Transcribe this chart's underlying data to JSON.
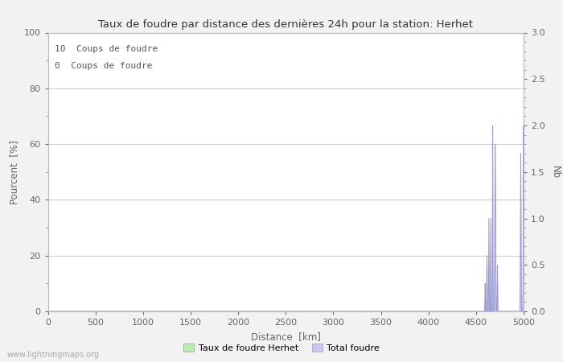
{
  "title": "Taux de foudre par distance des dernières 24h pour la station: Herhet",
  "xlabel": "Distance  [km]",
  "ylabel_left": "Pourcent  [%]",
  "ylabel_right": "Nb",
  "annotation_line1": "10  Coups de foudre",
  "annotation_line2": "0  Coups de foudre",
  "xlim": [
    0,
    5000
  ],
  "ylim_left": [
    0,
    100
  ],
  "ylim_right": [
    0,
    3.0
  ],
  "yticks_left": [
    0,
    20,
    40,
    60,
    80,
    100
  ],
  "yticks_right": [
    0.0,
    0.5,
    1.0,
    1.5,
    2.0,
    2.5,
    3.0
  ],
  "xticks": [
    0,
    500,
    1000,
    1500,
    2000,
    2500,
    3000,
    3500,
    4000,
    4500,
    5000
  ],
  "bg_color": "#f2f2f2",
  "plot_bg_color": "#ffffff",
  "grid_color": "#cccccc",
  "bar_color_green": "#bbeeaa",
  "bar_color_blue": "#c8c8f0",
  "line_color_blue": "#9999cc",
  "watermark": "www.lightningmaps.org",
  "legend_label1": "Taux de foudre Herhet",
  "legend_label2": "Total foudre",
  "spike_data": [
    [
      4590,
      0.0
    ],
    [
      4591,
      0.05
    ],
    [
      4592,
      0.1
    ],
    [
      4593,
      0.15
    ],
    [
      4594,
      0.2
    ],
    [
      4595,
      0.25
    ],
    [
      4596,
      0.3
    ],
    [
      4597,
      0.25
    ],
    [
      4598,
      0.2
    ],
    [
      4599,
      0.1
    ],
    [
      4600,
      0.05
    ],
    [
      4601,
      0.0
    ],
    [
      4609,
      0.0
    ],
    [
      4610,
      0.1
    ],
    [
      4611,
      0.2
    ],
    [
      4612,
      0.3
    ],
    [
      4613,
      0.4
    ],
    [
      4614,
      0.5
    ],
    [
      4615,
      0.6
    ],
    [
      4616,
      0.5
    ],
    [
      4617,
      0.4
    ],
    [
      4618,
      0.3
    ],
    [
      4619,
      0.2
    ],
    [
      4620,
      0.1
    ],
    [
      4621,
      0.05
    ],
    [
      4622,
      0.0
    ],
    [
      4629,
      0.0
    ],
    [
      4630,
      0.1
    ],
    [
      4631,
      0.2
    ],
    [
      4632,
      0.4
    ],
    [
      4633,
      0.6
    ],
    [
      4634,
      0.8
    ],
    [
      4635,
      1.0
    ],
    [
      4636,
      0.8
    ],
    [
      4637,
      0.6
    ],
    [
      4638,
      0.4
    ],
    [
      4639,
      0.2
    ],
    [
      4640,
      0.1
    ],
    [
      4641,
      0.0
    ],
    [
      4649,
      0.0
    ],
    [
      4650,
      0.1
    ],
    [
      4651,
      0.2
    ],
    [
      4652,
      0.4
    ],
    [
      4653,
      0.6
    ],
    [
      4654,
      0.8
    ],
    [
      4655,
      1.0
    ],
    [
      4656,
      0.8
    ],
    [
      4657,
      0.6
    ],
    [
      4658,
      0.4
    ],
    [
      4659,
      0.2
    ],
    [
      4660,
      0.1
    ],
    [
      4661,
      0.0
    ],
    [
      4669,
      0.0
    ],
    [
      4670,
      0.1
    ],
    [
      4671,
      0.3
    ],
    [
      4672,
      0.6
    ],
    [
      4673,
      1.0
    ],
    [
      4674,
      1.5
    ],
    [
      4675,
      2.0
    ],
    [
      4676,
      1.5
    ],
    [
      4677,
      1.0
    ],
    [
      4678,
      0.6
    ],
    [
      4679,
      0.3
    ],
    [
      4680,
      0.1
    ],
    [
      4681,
      0.0
    ],
    [
      4689,
      0.0
    ],
    [
      4690,
      0.05
    ],
    [
      4691,
      0.1
    ],
    [
      4692,
      0.2
    ],
    [
      4693,
      0.35
    ],
    [
      4694,
      0.5
    ],
    [
      4695,
      0.7
    ],
    [
      4696,
      0.9
    ],
    [
      4697,
      1.1
    ],
    [
      4698,
      1.3
    ],
    [
      4699,
      1.5
    ],
    [
      4700,
      1.7
    ],
    [
      4701,
      1.8
    ],
    [
      4702,
      1.7
    ],
    [
      4703,
      1.5
    ],
    [
      4704,
      1.3
    ],
    [
      4705,
      1.1
    ],
    [
      4706,
      0.9
    ],
    [
      4707,
      0.7
    ],
    [
      4708,
      0.5
    ],
    [
      4709,
      0.35
    ],
    [
      4710,
      0.2
    ],
    [
      4711,
      0.1
    ],
    [
      4712,
      0.05
    ],
    [
      4713,
      0.0
    ],
    [
      4719,
      0.0
    ],
    [
      4720,
      0.05
    ],
    [
      4721,
      0.1
    ],
    [
      4722,
      0.2
    ],
    [
      4723,
      0.3
    ],
    [
      4724,
      0.4
    ],
    [
      4725,
      0.5
    ],
    [
      4726,
      0.4
    ],
    [
      4727,
      0.3
    ],
    [
      4728,
      0.2
    ],
    [
      4729,
      0.1
    ],
    [
      4730,
      0.05
    ],
    [
      4731,
      0.0
    ],
    [
      4960,
      0.0
    ],
    [
      4961,
      0.05
    ],
    [
      4962,
      0.1
    ],
    [
      4963,
      0.2
    ],
    [
      4964,
      0.3
    ],
    [
      4965,
      0.5
    ],
    [
      4966,
      0.7
    ],
    [
      4967,
      1.0
    ],
    [
      4968,
      1.3
    ],
    [
      4969,
      1.6
    ],
    [
      4970,
      1.7
    ],
    [
      4971,
      1.5
    ],
    [
      4972,
      1.2
    ],
    [
      4973,
      0.9
    ],
    [
      4974,
      0.6
    ],
    [
      4975,
      0.4
    ],
    [
      4976,
      0.2
    ],
    [
      4977,
      0.1
    ],
    [
      4978,
      0.05
    ],
    [
      4979,
      0.0
    ],
    [
      4989,
      0.0
    ],
    [
      4990,
      0.05
    ],
    [
      4991,
      0.1
    ],
    [
      4992,
      0.2
    ],
    [
      4993,
      0.4
    ],
    [
      4994,
      0.7
    ],
    [
      4995,
      1.0
    ],
    [
      4996,
      1.4
    ],
    [
      4997,
      1.8
    ],
    [
      4998,
      2.0
    ],
    [
      4999,
      1.8
    ],
    [
      5000,
      2.0
    ]
  ]
}
